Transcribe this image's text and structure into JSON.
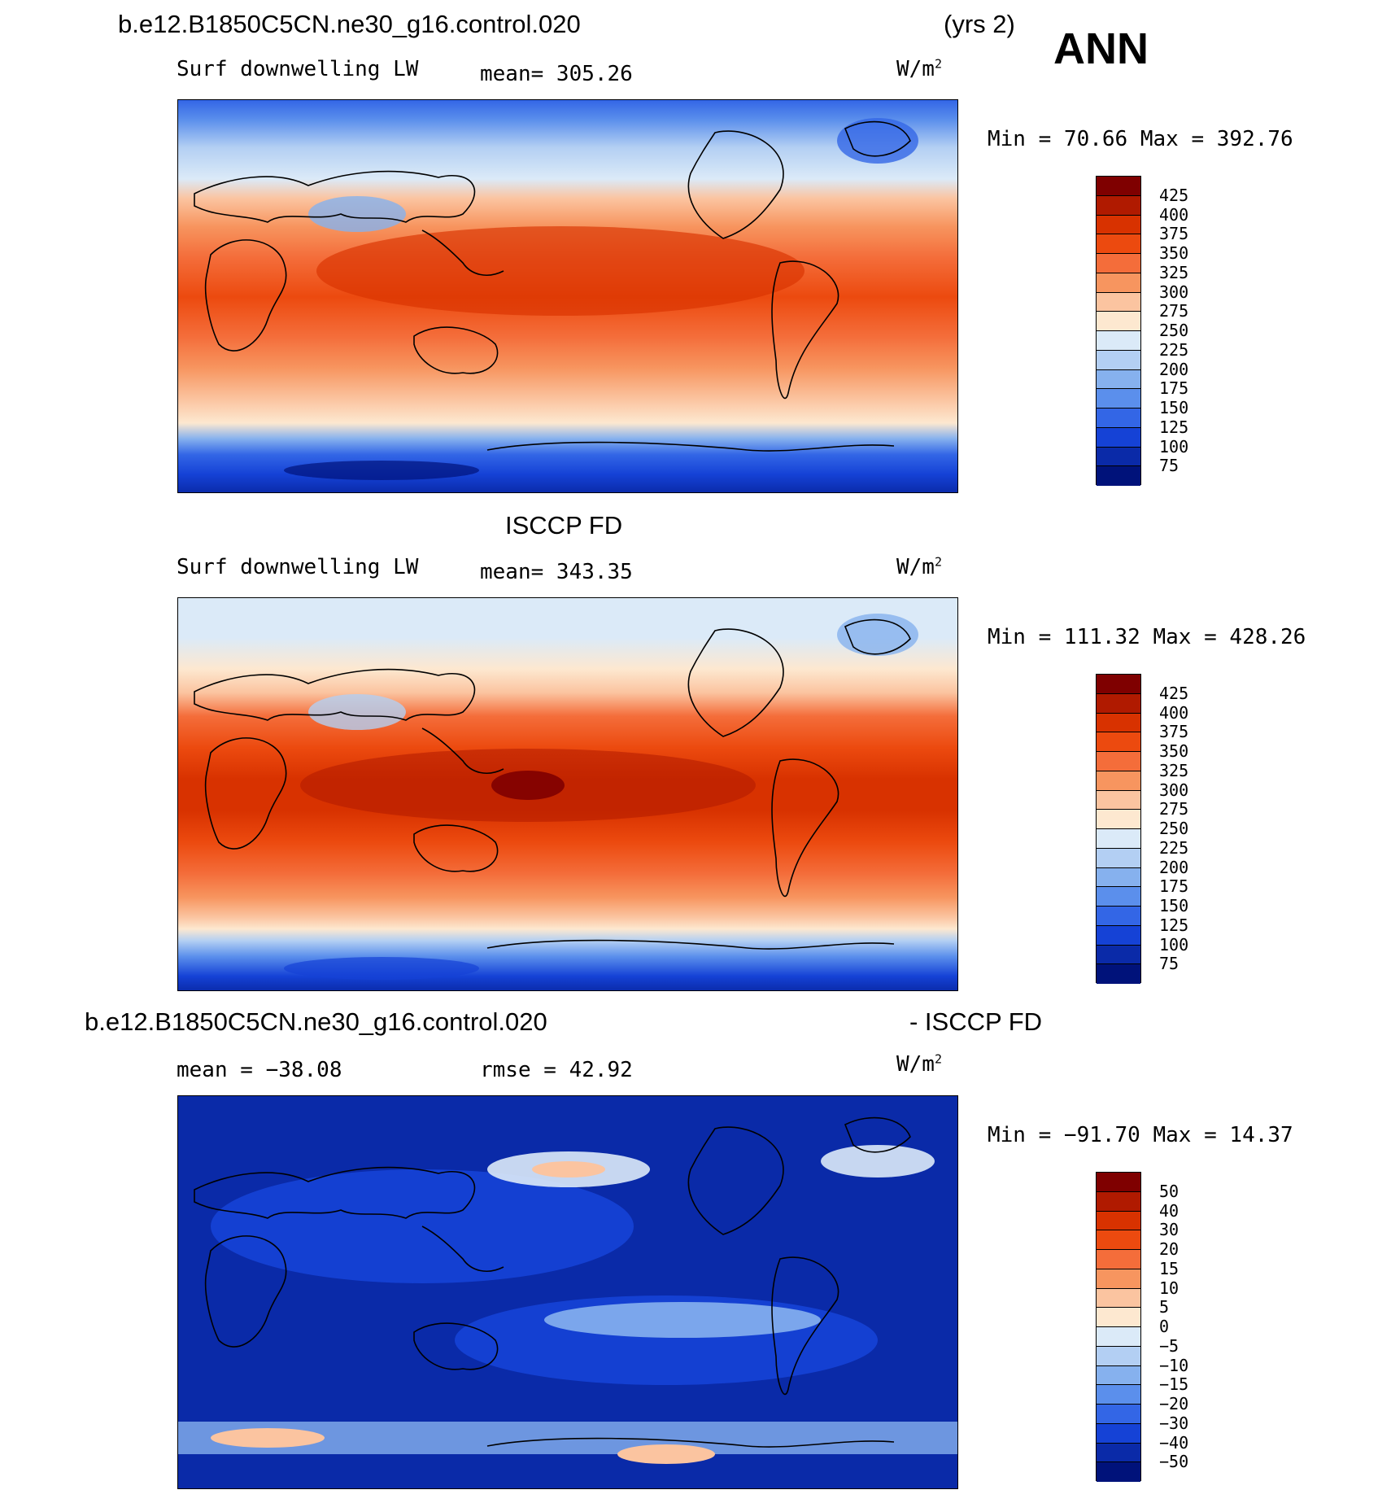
{
  "header": {
    "case_name": "b.e12.B1850C5CN.ne30_g16.control.020",
    "years": "(yrs 2)",
    "season": "ANN"
  },
  "panel1": {
    "variable": "Surf downwelling LW",
    "mean_label": "mean=  305.26",
    "units": "W/m",
    "units_sup": "2",
    "minmax": "Min =   70.66 Max = 392.76",
    "map_name": "model-map",
    "field": "model"
  },
  "panel2": {
    "dataset_title": "ISCCP FD",
    "variable": "Surf downwelling LW",
    "mean_label": "mean=  343.35",
    "units": "W/m",
    "units_sup": "2",
    "minmax": "Min = 111.32 Max = 428.26",
    "field": "obs"
  },
  "panel3": {
    "diff_left": "b.e12.B1850C5CN.ne30_g16.control.020",
    "diff_right": "- ISCCP FD",
    "mean_label": "mean = −38.08",
    "rmse_label": "rmse =   42.92",
    "units": "W/m",
    "units_sup": "2",
    "minmax": "Min = −91.70 Max =  14.37",
    "field": "diff"
  },
  "colorbar_abs": {
    "labels": [
      "425",
      "400",
      "375",
      "350",
      "325",
      "300",
      "275",
      "250",
      "225",
      "200",
      "175",
      "150",
      "125",
      "100",
      "75"
    ],
    "colors": [
      "#7f0000",
      "#b01a00",
      "#d83200",
      "#ec4a0f",
      "#f46d3a",
      "#f7955f",
      "#fbc4a0",
      "#fde8d0",
      "#dbeaf8",
      "#b3cff3",
      "#86b1ee",
      "#5b8fec",
      "#3366e6",
      "#1542d6",
      "#0a2aa8",
      "#00127a"
    ]
  },
  "colorbar_diff": {
    "labels": [
      "50",
      "40",
      "30",
      "20",
      "15",
      "10",
      "5",
      "0",
      "−5",
      "−10",
      "−15",
      "−20",
      "−30",
      "−40",
      "−50"
    ],
    "colors": [
      "#7f0000",
      "#b01a00",
      "#d83200",
      "#ec4a0f",
      "#f46d3a",
      "#f7955f",
      "#fbc4a0",
      "#fde8d0",
      "#dbeaf8",
      "#b3cff3",
      "#86b1ee",
      "#5b8fec",
      "#3366e6",
      "#1542d6",
      "#0a2aa8",
      "#00127a"
    ]
  }
}
